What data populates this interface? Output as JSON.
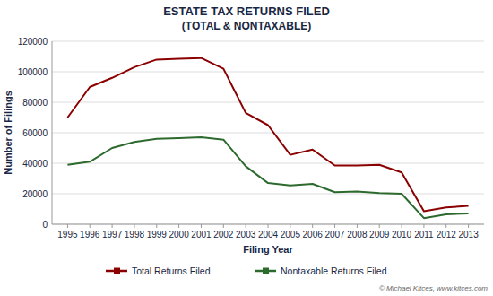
{
  "chart_data": {
    "type": "line",
    "title": "ESTATE TAX RETURNS FILED",
    "subtitle": "(TOTAL & NONTAXABLE)",
    "x_label": "Filing Year",
    "y_label": "Number of Filings",
    "x": [
      1995,
      1996,
      1997,
      1998,
      1999,
      2000,
      2001,
      2002,
      2003,
      2004,
      2005,
      2006,
      2007,
      2008,
      2009,
      2010,
      2011,
      2012,
      2013
    ],
    "series": [
      {
        "name": "Total Returns Filed",
        "color": "#8b0000",
        "values": [
          70000,
          90000,
          96000,
          103000,
          108000,
          108500,
          109000,
          102000,
          73000,
          65000,
          45500,
          49000,
          38500,
          38500,
          39000,
          34000,
          8500,
          11000,
          12000
        ]
      },
      {
        "name": "Nontaxable Returns Filed",
        "color": "#2d6a2d",
        "values": [
          39000,
          41000,
          50000,
          54000,
          56000,
          56500,
          57000,
          55500,
          38000,
          27000,
          25500,
          26500,
          21000,
          21500,
          20500,
          20000,
          4000,
          6500,
          7000
        ]
      }
    ],
    "xlim": [
      1994.3,
      2013.7
    ],
    "xticks": [
      1995,
      1996,
      1997,
      1998,
      1999,
      2000,
      2001,
      2002,
      2003,
      2004,
      2005,
      2006,
      2007,
      2008,
      2009,
      2010,
      2011,
      2012,
      2013
    ],
    "ylim": [
      0,
      120000
    ],
    "yticks": [
      0,
      20000,
      40000,
      60000,
      80000,
      100000,
      120000
    ],
    "grid": true,
    "legend": "bottom",
    "annotations": [
      "© Michael Kitces, www.kitces.com"
    ]
  }
}
